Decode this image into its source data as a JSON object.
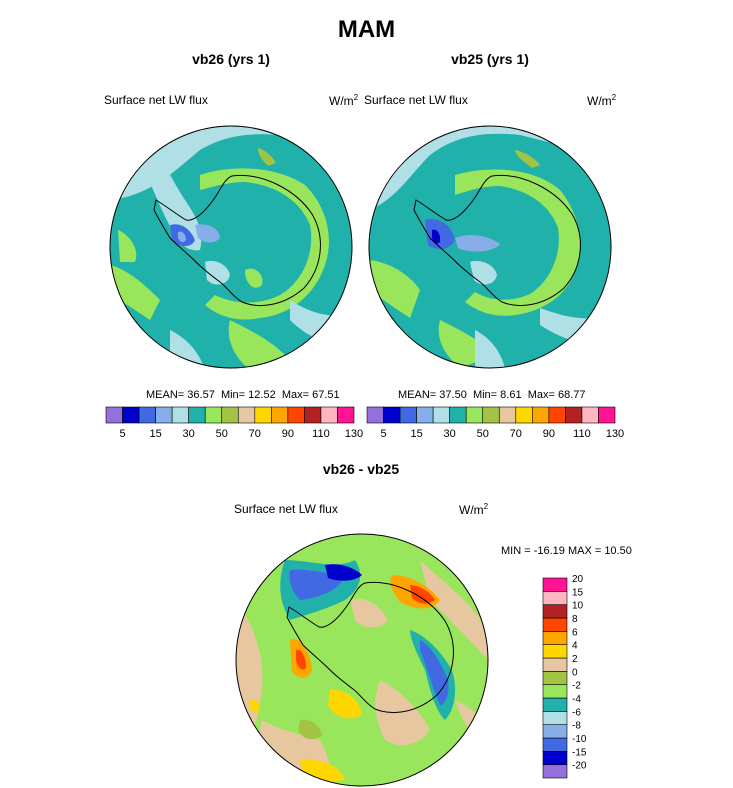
{
  "season_title": "MAM",
  "panels": [
    {
      "title": "vb26 (yrs 1)",
      "variable": "Surface net LW flux",
      "units_base": "W/m",
      "units_exp": "2",
      "stats": {
        "mean_label": "MEAN=",
        "mean": "36.57",
        "min_label": "Min=",
        "min": "12.52",
        "max_label": "Max=",
        "max": "67.51"
      }
    },
    {
      "title": "vb25 (yrs 1)",
      "variable": "Surface net LW flux",
      "units_base": "W/m",
      "units_exp": "2",
      "stats": {
        "mean_label": "MEAN=",
        "mean": "37.50",
        "min_label": "Min=",
        "min": "8.61",
        "max_label": "Max=",
        "max": "68.77"
      }
    }
  ],
  "diff_panel": {
    "title": "vb26 - vb25",
    "variable": "Surface net LW flux",
    "units_base": "W/m",
    "units_exp": "2",
    "minmax": "MIN = -16.19 MAX =  10.50"
  },
  "chart_data": [
    {
      "type": "heatmap",
      "projection": "south-polar-stereographic",
      "title": "vb26 (yrs 1)",
      "variable": "Surface net LW flux",
      "stats": {
        "mean": 36.57,
        "min": 12.52,
        "max": 67.51
      },
      "colorbar": {
        "orientation": "horizontal",
        "levels": [
          5,
          10,
          15,
          20,
          30,
          40,
          50,
          60,
          70,
          80,
          90,
          100,
          110,
          120,
          130
        ],
        "tick_labels": [
          "5",
          "15",
          "30",
          "50",
          "70",
          "90",
          "110",
          "130"
        ],
        "colors": [
          "#9370db",
          "#0000cd",
          "#4169e1",
          "#87aee8",
          "#b0e0e6",
          "#20b2aa",
          "#99e65c",
          "#a3c343",
          "#e6c79f",
          "#ffd700",
          "#ffa500",
          "#ff4500",
          "#b22222",
          "#ffb6c1",
          "#ff1493"
        ]
      }
    },
    {
      "type": "heatmap",
      "projection": "south-polar-stereographic",
      "title": "vb25 (yrs 1)",
      "variable": "Surface net LW flux",
      "stats": {
        "mean": 37.5,
        "min": 8.61,
        "max": 68.77
      },
      "colorbar": {
        "orientation": "horizontal",
        "levels": [
          5,
          10,
          15,
          20,
          30,
          40,
          50,
          60,
          70,
          80,
          90,
          100,
          110,
          120,
          130
        ],
        "tick_labels": [
          "5",
          "15",
          "30",
          "50",
          "70",
          "90",
          "110",
          "130"
        ],
        "colors": [
          "#9370db",
          "#0000cd",
          "#4169e1",
          "#87aee8",
          "#b0e0e6",
          "#20b2aa",
          "#99e65c",
          "#a3c343",
          "#e6c79f",
          "#ffd700",
          "#ffa500",
          "#ff4500",
          "#b22222",
          "#ffb6c1",
          "#ff1493"
        ]
      }
    },
    {
      "type": "heatmap",
      "projection": "south-polar-stereographic",
      "title": "vb26 - vb25",
      "variable": "Surface net LW flux",
      "stats": {
        "min": -16.19,
        "max": 10.5
      },
      "colorbar": {
        "orientation": "vertical",
        "levels": [
          -20,
          -15,
          -10,
          -8,
          -6,
          -4,
          -2,
          0,
          2,
          4,
          6,
          8,
          10,
          15,
          20
        ],
        "tick_labels": [
          "-20",
          "-15",
          "-10",
          "-8",
          "-6",
          "-4",
          "-2",
          "0",
          "2",
          "4",
          "6",
          "8",
          "10",
          "15",
          "20"
        ],
        "colors": [
          "#9370db",
          "#0000cd",
          "#4169e1",
          "#87aee8",
          "#b0e0e6",
          "#20b2aa",
          "#99e65c",
          "#a3c343",
          "#e6c79f",
          "#ffd700",
          "#ffa500",
          "#ff4500",
          "#b22222",
          "#ffb6c1",
          "#ff1493"
        ]
      }
    }
  ]
}
